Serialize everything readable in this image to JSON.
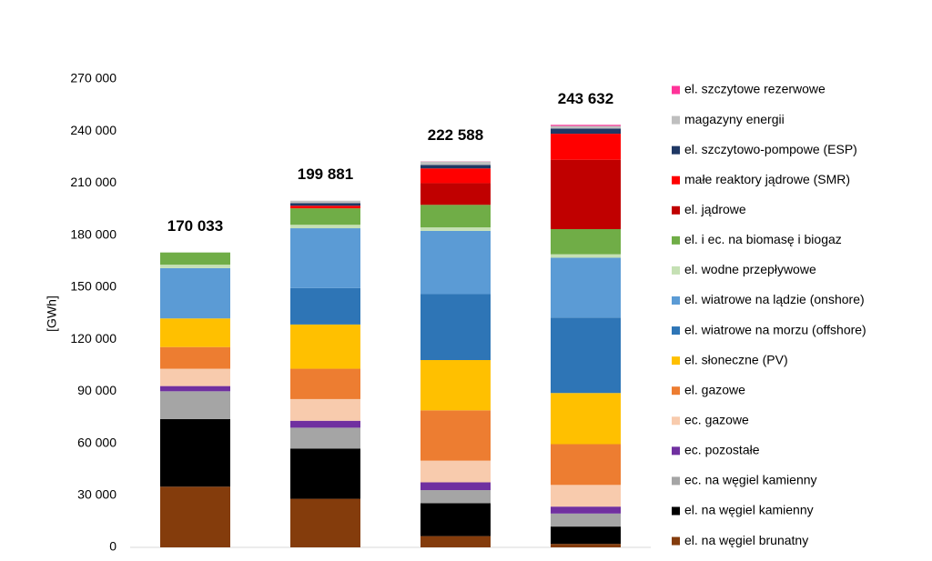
{
  "chart_data": {
    "type": "stacked_bar",
    "y_label": "[GWh]",
    "categories": [
      null,
      null,
      null,
      null
    ],
    "ylim": [
      0,
      270000
    ],
    "yticks": [
      0,
      {
        "value": 30000,
        "label": "30 000"
      },
      {
        "value": 60000,
        "label": "60 000"
      },
      {
        "value": 90000,
        "label": "90 000"
      },
      {
        "value": 120000,
        "label": "120 000"
      },
      {
        "value": 150000,
        "label": "150 000"
      },
      {
        "value": 180000,
        "label": "180 000"
      },
      {
        "value": 210000,
        "label": "210 000"
      },
      {
        "value": 240000,
        "label": "240 000"
      },
      {
        "value": 270000,
        "label": "270 000"
      }
    ],
    "totals": [
      170033,
      199881,
      222588,
      243632
    ],
    "total_labels": [
      "170 033",
      "199 881",
      "222 588",
      "243 632"
    ],
    "series": [
      {
        "name": "el. na węgiel brunatny",
        "color": "#843c0c",
        "values": [
          35000,
          28000,
          6500,
          2000
        ]
      },
      {
        "name": "el. na węgiel kamienny",
        "color": "#000000",
        "values": [
          39000,
          29000,
          19000,
          10000
        ]
      },
      {
        "name": "ec. na węgiel kamienny",
        "color": "#a5a5a5",
        "values": [
          16000,
          12000,
          7500,
          7500
        ]
      },
      {
        "name": "ec. pozostałe",
        "color": "#7030a0",
        "values": [
          3000,
          4000,
          4500,
          4000
        ]
      },
      {
        "name": "ec. gazowe",
        "color": "#f8cbad",
        "values": [
          10000,
          12500,
          12500,
          12500
        ]
      },
      {
        "name": "el. gazowe",
        "color": "#ed7d31",
        "values": [
          12500,
          17500,
          29000,
          23500
        ]
      },
      {
        "name": "el. słoneczne (PV)",
        "color": "#ffc000",
        "values": [
          16500,
          25500,
          29000,
          29500
        ]
      },
      {
        "name": "el. wiatrowe na morzu (offshore)",
        "color": "#2e75b6",
        "values": [
          0,
          21000,
          38000,
          43500
        ]
      },
      {
        "name": "el. wiatrowe na lądzie (onshore)",
        "color": "#5b9bd5",
        "values": [
          29000,
          34500,
          36500,
          34500
        ]
      },
      {
        "name": "el. wodne przepływowe",
        "color": "#c5e0b4",
        "values": [
          2000,
          2000,
          2000,
          2000
        ]
      },
      {
        "name": "el. i ec. na biomasę i biogaz",
        "color": "#70ad47",
        "values": [
          7033,
          9500,
          13000,
          14500
        ]
      },
      {
        "name": "el. jądrowe",
        "color": "#c00000",
        "values": [
          0,
          0,
          12500,
          40000
        ]
      },
      {
        "name": "małe reaktory jądrowe (SMR)",
        "color": "#ff0000",
        "values": [
          0,
          1500,
          8500,
          15000
        ]
      },
      {
        "name": "el. szczytowo-pompowe (ESP)",
        "color": "#1f3864",
        "values": [
          0,
          1500,
          2000,
          3000
        ]
      },
      {
        "name": "magazyny energii",
        "color": "#bfbfbf",
        "values": [
          0,
          1381,
          2000,
          1500
        ]
      },
      {
        "name": "el. szczytowe rezerwowe",
        "color": "#ff3399",
        "values": [
          0,
          0,
          88,
          632
        ]
      }
    ]
  }
}
